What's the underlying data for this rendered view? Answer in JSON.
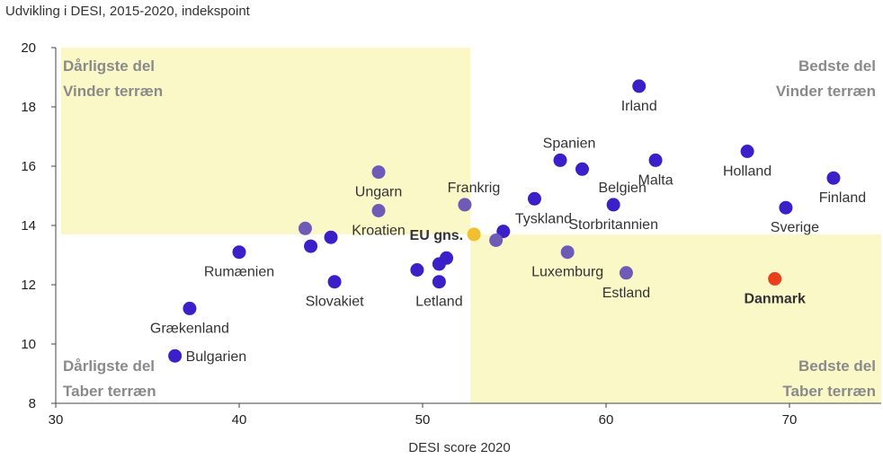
{
  "chart_data": {
    "type": "scatter",
    "title": "Udvikling i DESI, 2015-2020, indekspoint",
    "xlabel": "DESI score 2020",
    "ylabel": "",
    "xlim": [
      30,
      75
    ],
    "ylim": [
      8,
      20
    ],
    "xticks": [
      30,
      40,
      50,
      60,
      70
    ],
    "yticks": [
      8,
      10,
      12,
      14,
      16,
      18,
      20
    ],
    "grid": false,
    "divider": {
      "x": 52.6,
      "y": 13.7
    },
    "highlight_color": "#fbf8c8",
    "colors": {
      "country": "#3b1fc9",
      "faded": "#6e5bb8",
      "eu": "#f0c030",
      "denmark": "#e8401c"
    },
    "quadrant_labels": [
      {
        "id": "top-left",
        "lines": [
          "Dårligste del",
          "Vinder terræn"
        ]
      },
      {
        "id": "top-right",
        "lines": [
          "Bedste del",
          "Vinder terræn"
        ]
      },
      {
        "id": "bottom-left",
        "lines": [
          "Dårligste del",
          "Taber terræn"
        ]
      },
      {
        "id": "bottom-right",
        "lines": [
          "Bedste del",
          "Taber terræn"
        ]
      }
    ],
    "points": [
      {
        "label": "Irland",
        "x": 61.8,
        "y": 18.7,
        "style": "country",
        "lx": 0,
        "ly": -1
      },
      {
        "label": "Spanien",
        "x": 57.5,
        "y": 16.2,
        "style": "country",
        "lx": -1,
        "ly": 1
      },
      {
        "label": "",
        "x": 58.7,
        "y": 15.9,
        "style": "country"
      },
      {
        "label": "Malta",
        "x": 62.7,
        "y": 16.2,
        "style": "country",
        "lx": 0,
        "ly": -1
      },
      {
        "label": "Holland",
        "x": 67.7,
        "y": 16.5,
        "style": "country",
        "lx": 0,
        "ly": -1
      },
      {
        "label": "Finland",
        "x": 72.4,
        "y": 15.6,
        "style": "country",
        "lx": -1,
        "ly": -1
      },
      {
        "label": "Sverige",
        "x": 69.8,
        "y": 14.6,
        "style": "country",
        "lx": -1,
        "ly": -1
      },
      {
        "label": "Belgien",
        "x": 60.4,
        "y": 14.7,
        "style": "country",
        "lx": -1,
        "ly": 1
      },
      {
        "label": "Storbritannien",
        "x": 60.4,
        "y": 14.7,
        "style": "none",
        "lx": 0,
        "ly": -1
      },
      {
        "label": "Tyskland",
        "x": 56.1,
        "y": 14.9,
        "style": "country",
        "lx": -1,
        "ly": -1
      },
      {
        "label": "",
        "x": 54.4,
        "y": 13.8,
        "style": "country"
      },
      {
        "label": "",
        "x": 54.0,
        "y": 13.5,
        "style": "faded"
      },
      {
        "label": "Frankrig",
        "x": 52.3,
        "y": 14.7,
        "style": "faded",
        "lx": -1,
        "ly": 1
      },
      {
        "label": "EU gns.",
        "x": 52.8,
        "y": 13.7,
        "style": "eu",
        "lx": -1,
        "ly": 0
      },
      {
        "label": "Ungarn",
        "x": 47.6,
        "y": 15.8,
        "style": "faded",
        "lx": 0,
        "ly": -1
      },
      {
        "label": "Kroatien",
        "x": 47.6,
        "y": 14.5,
        "style": "faded",
        "lx": 0,
        "ly": -1
      },
      {
        "label": "",
        "x": 43.6,
        "y": 13.9,
        "style": "faded"
      },
      {
        "label": "",
        "x": 45.0,
        "y": 13.6,
        "style": "country"
      },
      {
        "label": "",
        "x": 43.9,
        "y": 13.3,
        "style": "country"
      },
      {
        "label": "Rumænien",
        "x": 40.0,
        "y": 13.1,
        "style": "country",
        "lx": 0,
        "ly": -1
      },
      {
        "label": "Slovakiet",
        "x": 45.2,
        "y": 12.1,
        "style": "country",
        "lx": 0,
        "ly": -1
      },
      {
        "label": "",
        "x": 49.7,
        "y": 12.5,
        "style": "country"
      },
      {
        "label": "",
        "x": 50.9,
        "y": 12.7,
        "style": "country"
      },
      {
        "label": "",
        "x": 51.3,
        "y": 12.9,
        "style": "country"
      },
      {
        "label": "Letland",
        "x": 50.9,
        "y": 12.1,
        "style": "country",
        "lx": 0,
        "ly": -1
      },
      {
        "label": "Luxemburg",
        "x": 57.9,
        "y": 13.1,
        "style": "faded",
        "lx": 0,
        "ly": -1
      },
      {
        "label": "Estland",
        "x": 61.1,
        "y": 12.4,
        "style": "faded",
        "lx": 0,
        "ly": -1
      },
      {
        "label": "Danmark",
        "x": 69.2,
        "y": 12.2,
        "style": "denmark",
        "lx": 0,
        "ly": -1
      },
      {
        "label": "Grækenland",
        "x": 37.3,
        "y": 11.2,
        "style": "country",
        "lx": 0,
        "ly": -1
      },
      {
        "label": "Bulgarien",
        "x": 36.5,
        "y": 9.6,
        "style": "country",
        "lx": 1,
        "ly": 0
      }
    ]
  }
}
